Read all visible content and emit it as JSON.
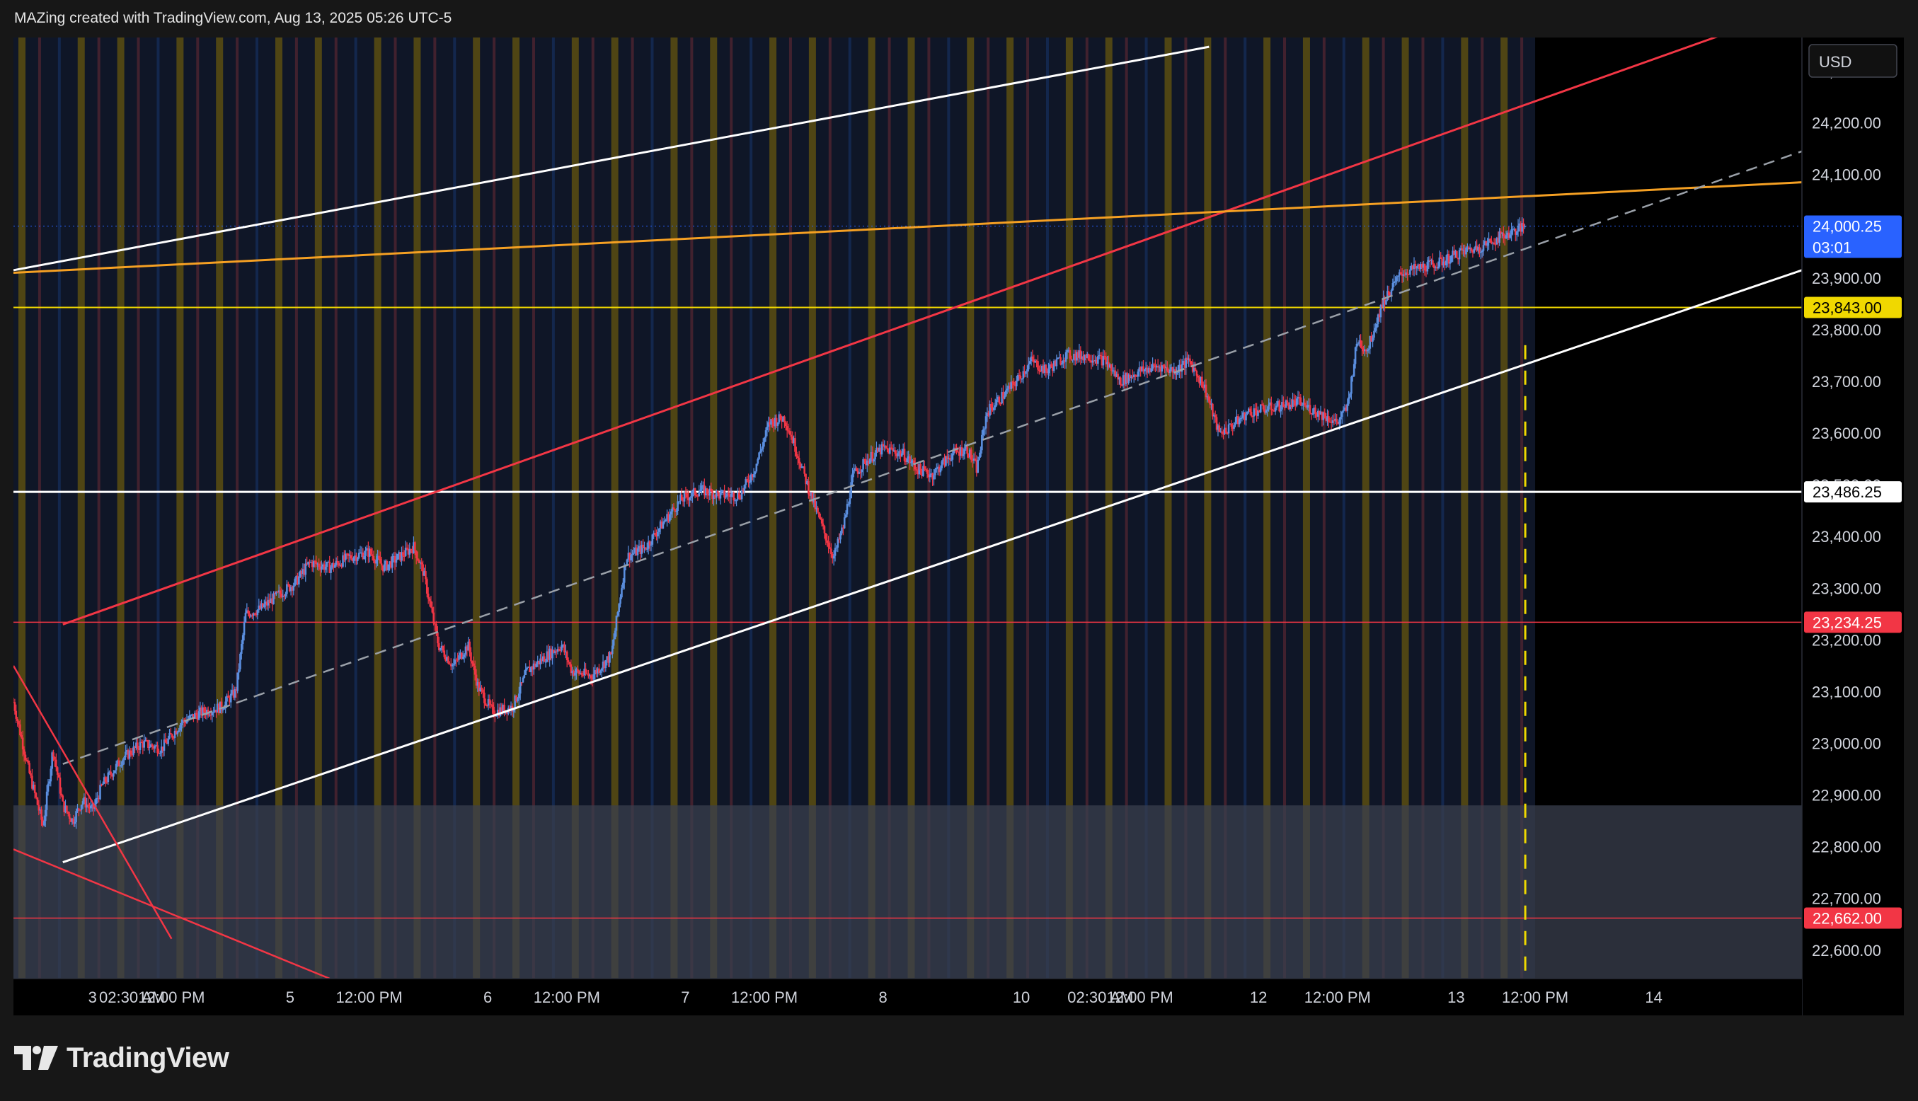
{
  "header": {
    "text": "MAZing created with TradingView.com, Aug 13, 2025 05:26 UTC-5"
  },
  "logo": {
    "text": "TradingView"
  },
  "colors": {
    "background": "#000000",
    "session_shade": "#0f1627",
    "bull_candle": "#5b8fe0",
    "bear_candle": "#f23645",
    "resistance_red": "#f23645",
    "channel_white": "#ffffff",
    "orange_trend": "#f5a023",
    "yellow_level": "#f0d800",
    "demand_zone": "#3a3f4e"
  },
  "chart_data": {
    "type": "candlestick",
    "currency": "USD",
    "y_ticks": [
      22600,
      22700,
      22800,
      22900,
      23000,
      23100,
      23200,
      23300,
      23400,
      23500,
      23600,
      23700,
      23800,
      23900,
      24000,
      24100,
      24200,
      24300
    ],
    "ylim": [
      22545,
      24365
    ],
    "x_ticks": [
      {
        "label": "3",
        "x": 0.5
      },
      {
        "label": "02:30 AM",
        "x": 0.9
      },
      {
        "label": "12:00 PM",
        "x": 1.3
      },
      {
        "label": "5",
        "x": 2.5
      },
      {
        "label": "12:00 PM",
        "x": 3.3
      },
      {
        "label": "6",
        "x": 4.5
      },
      {
        "label": "12:00 PM",
        "x": 5.3
      },
      {
        "label": "7",
        "x": 6.5
      },
      {
        "label": "12:00 PM",
        "x": 7.3
      },
      {
        "label": "8",
        "x": 8.5
      },
      {
        "label": "10",
        "x": 9.9
      },
      {
        "label": "02:30 AM",
        "x": 10.7
      },
      {
        "label": "12:00 PM",
        "x": 11.1
      },
      {
        "label": "12",
        "x": 12.3
      },
      {
        "label": "12:00 PM",
        "x": 13.1
      },
      {
        "label": "13",
        "x": 14.3
      },
      {
        "label": "12:00 PM",
        "x": 15.1
      },
      {
        "label": "14",
        "x": 16.3
      }
    ],
    "xlim": [
      -0.3,
      17.8
    ],
    "last_bar_x": 15.0,
    "price_labels": [
      {
        "value": "24,000.25",
        "sub": "03:01",
        "price": 24000.25,
        "bg": "#2962ff",
        "fg": "#ffffff"
      },
      {
        "value": "23,843.00",
        "price": 23843,
        "bg": "#f0d800",
        "fg": "#000000"
      },
      {
        "value": "23,486.25",
        "price": 23486.25,
        "bg": "#ffffff",
        "fg": "#000000"
      },
      {
        "value": "23,234.25",
        "price": 23234.25,
        "bg": "#f23645",
        "fg": "#ffffff"
      },
      {
        "value": "22,662.00",
        "price": 22662,
        "bg": "#f23645",
        "fg": "#ffffff"
      }
    ],
    "horizontal_lines": [
      {
        "price": 24000.25,
        "color": "#2962ff",
        "style": "dotted",
        "width": 1
      },
      {
        "price": 23843,
        "color": "#f0d800",
        "style": "solid",
        "width": 2
      },
      {
        "price": 23486.25,
        "color": "#ffffff",
        "style": "solid",
        "width": 3
      },
      {
        "price": 23234.25,
        "color": "#f23645",
        "style": "solid",
        "width": 1.5
      },
      {
        "price": 22662,
        "color": "#f23645",
        "style": "solid",
        "width": 1.5
      }
    ],
    "trend_lines": [
      {
        "x1": -0.3,
        "p1": 23915,
        "x2": 11.8,
        "p2": 24347,
        "color": "#ffffff",
        "width": 3,
        "dash": ""
      },
      {
        "x1": 0.2,
        "p1": 23230,
        "x2": 17.8,
        "p2": 24425,
        "color": "#f23645",
        "width": 3,
        "dash": ""
      },
      {
        "x1": -0.3,
        "p1": 23910,
        "x2": 17.8,
        "p2": 24085,
        "color": "#f5a023",
        "width": 3,
        "dash": ""
      },
      {
        "x1": 0.2,
        "p1": 22960,
        "x2": 17.8,
        "p2": 24145,
        "color": "#9aa0a8",
        "width": 2.5,
        "dash": "16,10"
      },
      {
        "x1": 0.2,
        "p1": 22770,
        "x2": 17.8,
        "p2": 23915,
        "color": "#ffffff",
        "width": 3,
        "dash": ""
      },
      {
        "x1": -0.3,
        "p1": 23150,
        "x2": 1.3,
        "p2": 22622,
        "color": "#f23645",
        "width": 2.5,
        "dash": ""
      },
      {
        "x1": -0.3,
        "p1": 22795,
        "x2": 2.9,
        "p2": 22545,
        "color": "#f23645",
        "width": 2.5,
        "dash": ""
      }
    ],
    "demand_zone": {
      "x1": -0.3,
      "x2": 17.8,
      "p_top": 22880,
      "p_bottom": 22545
    },
    "future_marker": {
      "x": 15.0,
      "p_top": 23770,
      "p_bottom": 22545,
      "color": "#f0d800"
    },
    "session_shade": {
      "x1": -0.3,
      "x2": 15.1
    },
    "price_path": [
      [
        -0.3,
        23080
      ],
      [
        -0.15,
        22950
      ],
      [
        0.0,
        22840
      ],
      [
        0.1,
        22990
      ],
      [
        0.2,
        22880
      ],
      [
        0.3,
        22850
      ],
      [
        0.4,
        22890
      ],
      [
        0.5,
        22870
      ],
      [
        0.6,
        22920
      ],
      [
        0.8,
        22970
      ],
      [
        1.0,
        23000
      ],
      [
        1.2,
        22990
      ],
      [
        1.4,
        23040
      ],
      [
        1.6,
        23060
      ],
      [
        1.8,
        23070
      ],
      [
        1.95,
        23100
      ],
      [
        2.05,
        23250
      ],
      [
        2.2,
        23260
      ],
      [
        2.4,
        23290
      ],
      [
        2.55,
        23310
      ],
      [
        2.7,
        23350
      ],
      [
        2.9,
        23340
      ],
      [
        3.1,
        23360
      ],
      [
        3.3,
        23370
      ],
      [
        3.45,
        23340
      ],
      [
        3.6,
        23360
      ],
      [
        3.75,
        23380
      ],
      [
        3.85,
        23330
      ],
      [
        4.0,
        23190
      ],
      [
        4.15,
        23150
      ],
      [
        4.3,
        23190
      ],
      [
        4.4,
        23110
      ],
      [
        4.55,
        23060
      ],
      [
        4.75,
        23070
      ],
      [
        4.9,
        23140
      ],
      [
        5.1,
        23170
      ],
      [
        5.25,
        23190
      ],
      [
        5.35,
        23140
      ],
      [
        5.55,
        23130
      ],
      [
        5.75,
        23170
      ],
      [
        5.9,
        23360
      ],
      [
        6.1,
        23380
      ],
      [
        6.25,
        23420
      ],
      [
        6.45,
        23470
      ],
      [
        6.65,
        23490
      ],
      [
        6.85,
        23480
      ],
      [
        7.05,
        23480
      ],
      [
        7.2,
        23530
      ],
      [
        7.35,
        23620
      ],
      [
        7.5,
        23630
      ],
      [
        7.6,
        23580
      ],
      [
        7.75,
        23490
      ],
      [
        7.9,
        23410
      ],
      [
        8.0,
        23360
      ],
      [
        8.1,
        23420
      ],
      [
        8.2,
        23520
      ],
      [
        8.35,
        23550
      ],
      [
        8.5,
        23570
      ],
      [
        8.7,
        23560
      ],
      [
        8.85,
        23530
      ],
      [
        9.0,
        23520
      ],
      [
        9.2,
        23560
      ],
      [
        9.35,
        23570
      ],
      [
        9.45,
        23530
      ],
      [
        9.55,
        23640
      ],
      [
        9.7,
        23670
      ],
      [
        9.85,
        23700
      ],
      [
        10.0,
        23740
      ],
      [
        10.15,
        23720
      ],
      [
        10.35,
        23750
      ],
      [
        10.55,
        23750
      ],
      [
        10.75,
        23740
      ],
      [
        10.9,
        23700
      ],
      [
        11.1,
        23720
      ],
      [
        11.3,
        23730
      ],
      [
        11.45,
        23720
      ],
      [
        11.6,
        23740
      ],
      [
        11.75,
        23690
      ],
      [
        11.9,
        23600
      ],
      [
        12.0,
        23610
      ],
      [
        12.2,
        23640
      ],
      [
        12.45,
        23650
      ],
      [
        12.7,
        23660
      ],
      [
        12.9,
        23640
      ],
      [
        13.1,
        23620
      ],
      [
        13.2,
        23650
      ],
      [
        13.3,
        23780
      ],
      [
        13.4,
        23760
      ],
      [
        13.55,
        23850
      ],
      [
        13.75,
        23910
      ],
      [
        13.95,
        23920
      ],
      [
        14.15,
        23930
      ],
      [
        14.35,
        23950
      ],
      [
        14.55,
        23960
      ],
      [
        14.75,
        23980
      ],
      [
        15.0,
        24000
      ]
    ]
  }
}
